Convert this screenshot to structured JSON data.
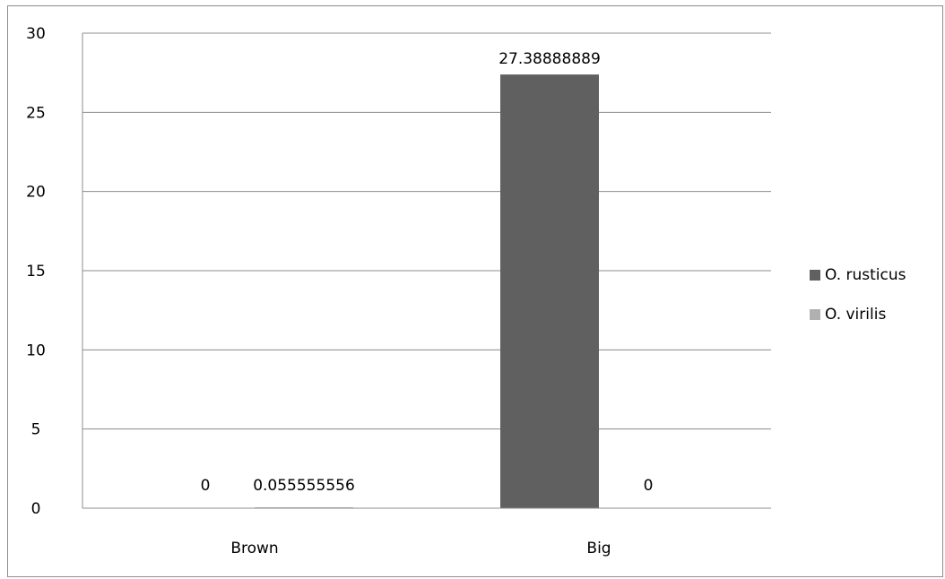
{
  "chart_data": {
    "type": "bar",
    "categories": [
      "Brown",
      "Big"
    ],
    "series": [
      {
        "name": "O. rusticus",
        "values": [
          0,
          27.38888889
        ],
        "labels": [
          "0",
          "27.38888889"
        ],
        "color": "#606060"
      },
      {
        "name": "O. virilis",
        "values": [
          0.055555556,
          0
        ],
        "labels": [
          "0.055555556",
          "0"
        ],
        "color": "#b0b0b0"
      }
    ],
    "yticks": [
      "0",
      "5",
      "10",
      "15",
      "20",
      "25",
      "30"
    ],
    "ylim": [
      0,
      30
    ],
    "grid": true,
    "legend": "right",
    "title": "",
    "xlabel": "",
    "ylabel": ""
  }
}
